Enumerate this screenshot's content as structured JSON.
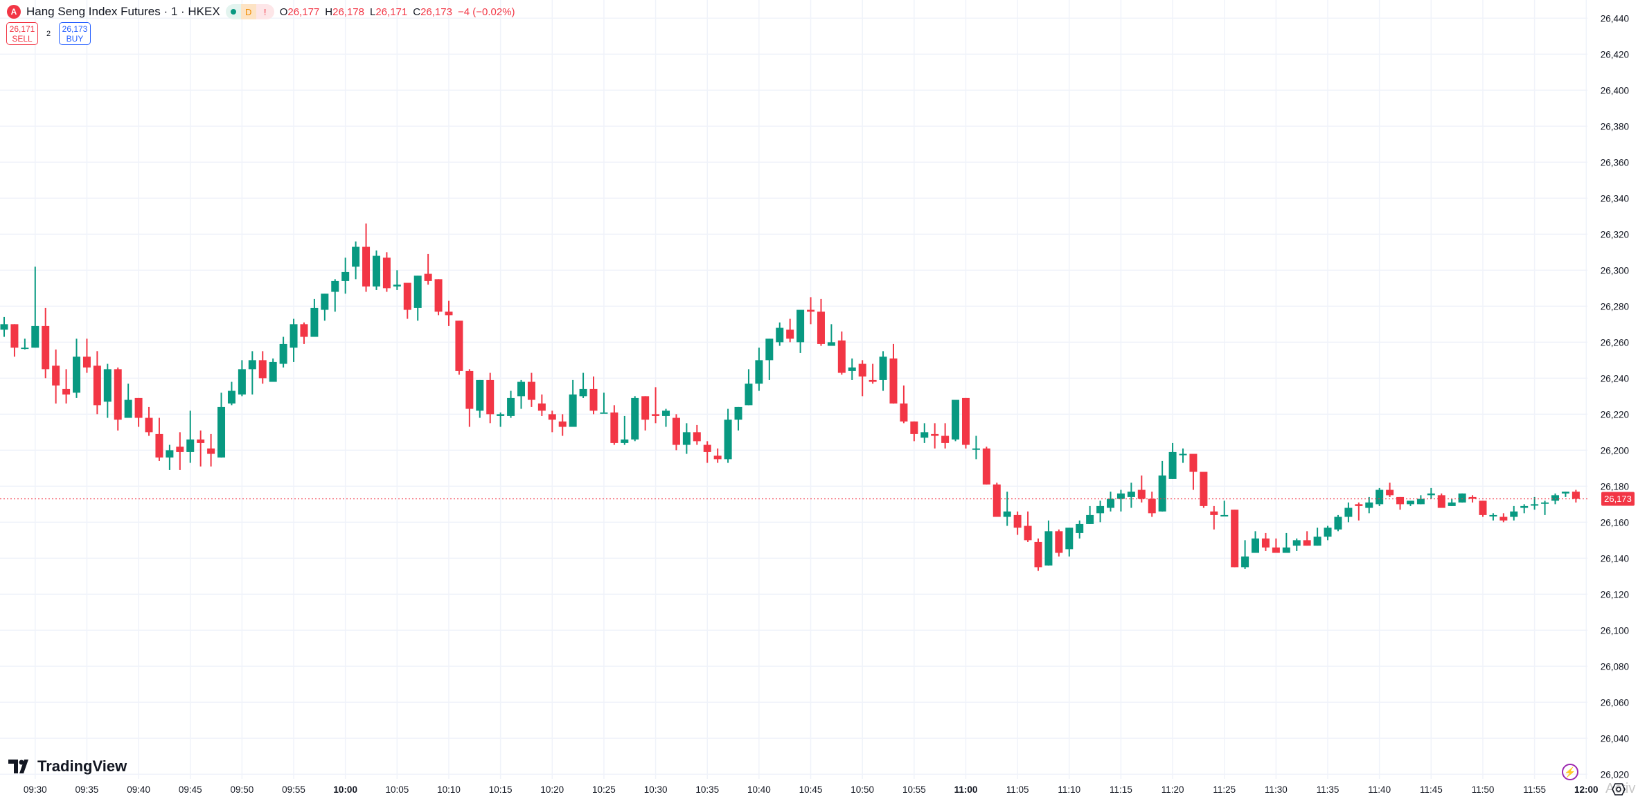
{
  "header": {
    "symbol_title": "Hang Seng Index Futures · 1 · HKEX",
    "logo_letter": "A",
    "badge_d": "D",
    "badge_warn": "!",
    "open_label": "O",
    "open": "26,177",
    "high_label": "H",
    "high": "26,178",
    "low_label": "L",
    "low": "26,171",
    "close_label": "C",
    "close": "26,173",
    "change": "−4 (−0.02%)"
  },
  "trade": {
    "sell_price": "26,171",
    "sell_label": "SELL",
    "spread": "2",
    "buy_price": "26,173",
    "buy_label": "BUY"
  },
  "branding": {
    "tradingview": "TradingView"
  },
  "watermark": "Activ",
  "colors": {
    "up": "#089981",
    "down": "#f23645",
    "grid": "#f0f3fa",
    "current_price": "#f23645"
  },
  "icons": {
    "symbol_logo": "hkex-logo-icon",
    "lightning": "lightning-icon",
    "settings": "settings-icon"
  },
  "chart_data": {
    "type": "candlestick",
    "interval": "1 minute",
    "current_price": 26173,
    "current_price_label": "26,173",
    "ylim": [
      26020,
      26440
    ],
    "y_ticks": [
      "26,020",
      "26,040",
      "26,060",
      "26,080",
      "26,100",
      "26,120",
      "26,140",
      "26,160",
      "26,180",
      "26,200",
      "26,220",
      "26,240",
      "26,260",
      "26,280",
      "26,300",
      "26,320",
      "26,340",
      "26,360",
      "26,380",
      "26,400",
      "26,420",
      "26,440"
    ],
    "x_ticks": [
      "09:30",
      "09:35",
      "09:40",
      "09:45",
      "09:50",
      "09:55",
      "10:00",
      "10:05",
      "10:10",
      "10:15",
      "10:20",
      "10:25",
      "10:30",
      "10:35",
      "10:40",
      "10:45",
      "10:50",
      "10:55",
      "11:00",
      "11:05",
      "11:10",
      "11:15",
      "11:20",
      "11:25",
      "11:30",
      "11:35",
      "11:40",
      "11:45",
      "11:50",
      "11:55",
      "12:00"
    ],
    "grid": true,
    "candle_fields": [
      "time",
      "open",
      "high",
      "low",
      "close"
    ],
    "candles": [
      [
        "09:27",
        26267,
        26274,
        26263,
        26270
      ],
      [
        "09:28",
        26270,
        26270,
        26252,
        26257
      ],
      [
        "09:29",
        26257,
        26262,
        26256,
        26257
      ],
      [
        "09:30",
        26257,
        26302,
        26257,
        26269
      ],
      [
        "09:31",
        26269,
        26279,
        26240,
        26245
      ],
      [
        "09:32",
        26247,
        26256,
        26226,
        26236
      ],
      [
        "09:33",
        26234,
        26245,
        26226,
        26231
      ],
      [
        "09:34",
        26232,
        26262,
        26229,
        26252
      ],
      [
        "09:35",
        26252,
        26262,
        26243,
        26246
      ],
      [
        "09:36",
        26247,
        26255,
        26220,
        26225
      ],
      [
        "09:37",
        26227,
        26248,
        26218,
        26245
      ],
      [
        "09:38",
        26245,
        26246,
        26211,
        26217
      ],
      [
        "09:39",
        26218,
        26237,
        26218,
        26228
      ],
      [
        "09:40",
        26229,
        26229,
        26213,
        26218
      ],
      [
        "09:41",
        26218,
        26224,
        26208,
        26210
      ],
      [
        "09:42",
        26209,
        26218,
        26194,
        26196
      ],
      [
        "09:43",
        26196,
        26203,
        26189,
        26200
      ],
      [
        "09:44",
        26202,
        26210,
        26189,
        26199
      ],
      [
        "09:45",
        26199,
        26222,
        26193,
        26206
      ],
      [
        "09:46",
        26206,
        26211,
        26191,
        26204
      ],
      [
        "09:47",
        26201,
        26209,
        26191,
        26198
      ],
      [
        "09:48",
        26196,
        26232,
        26196,
        26224
      ],
      [
        "09:49",
        26226,
        26238,
        26225,
        26233
      ],
      [
        "09:50",
        26231,
        26250,
        26230,
        26245
      ],
      [
        "09:51",
        26245,
        26255,
        26231,
        26250
      ],
      [
        "09:52",
        26250,
        26255,
        26237,
        26240
      ],
      [
        "09:53",
        26238,
        26251,
        26238,
        26249
      ],
      [
        "09:54",
        26248,
        26263,
        26246,
        26259
      ],
      [
        "09:55",
        26257,
        26273,
        26249,
        26270
      ],
      [
        "09:56",
        26270,
        26271,
        26259,
        26263
      ],
      [
        "09:57",
        26263,
        26284,
        26263,
        26279
      ],
      [
        "09:58",
        26278,
        26287,
        26272,
        26287
      ],
      [
        "09:59",
        26288,
        26295,
        26277,
        26294
      ],
      [
        "10:00",
        26294,
        26307,
        26287,
        26299
      ],
      [
        "10:01",
        26302,
        26316,
        26295,
        26313
      ],
      [
        "10:02",
        26313,
        26326,
        26288,
        26291
      ],
      [
        "10:03",
        26291,
        26311,
        26289,
        26308
      ],
      [
        "10:04",
        26307,
        26310,
        26288,
        26290
      ],
      [
        "10:05",
        26291,
        26300,
        26289,
        26292
      ],
      [
        "10:06",
        26293,
        26293,
        26273,
        26278
      ],
      [
        "10:07",
        26279,
        26297,
        26272,
        26297
      ],
      [
        "10:08",
        26298,
        26309,
        26292,
        26294
      ],
      [
        "10:09",
        26295,
        26295,
        26275,
        26277
      ],
      [
        "10:10",
        26277,
        26283,
        26269,
        26275
      ],
      [
        "10:11",
        26272,
        26272,
        26242,
        26244
      ],
      [
        "10:12",
        26244,
        26245,
        26213,
        26223
      ],
      [
        "10:13",
        26222,
        26239,
        26218,
        26239
      ],
      [
        "10:14",
        26239,
        26243,
        26215,
        26220
      ],
      [
        "10:15",
        26219,
        26221,
        26213,
        26220
      ],
      [
        "10:16",
        26219,
        26233,
        26218,
        26229
      ],
      [
        "10:17",
        26230,
        26239,
        26223,
        26238
      ],
      [
        "10:18",
        26238,
        26243,
        26224,
        26228
      ],
      [
        "10:19",
        26226,
        26231,
        26219,
        26222
      ],
      [
        "10:20",
        26220,
        26222,
        26210,
        26217
      ],
      [
        "10:21",
        26216,
        26220,
        26208,
        26213
      ],
      [
        "10:22",
        26213,
        26239,
        26213,
        26231
      ],
      [
        "10:23",
        26230,
        26243,
        26229,
        26234
      ],
      [
        "10:24",
        26234,
        26241,
        26220,
        26222
      ],
      [
        "10:25",
        26221,
        26232,
        26221,
        26221
      ],
      [
        "10:26",
        26221,
        26225,
        26203,
        26204
      ],
      [
        "10:27",
        26204,
        26219,
        26203,
        26206
      ],
      [
        "10:28",
        26206,
        26230,
        26205,
        26229
      ],
      [
        "10:29",
        26230,
        26230,
        26211,
        26217
      ],
      [
        "10:30",
        26220,
        26235,
        26215,
        26219
      ],
      [
        "10:31",
        26219,
        26223,
        26213,
        26222
      ],
      [
        "10:32",
        26218,
        26220,
        26200,
        26203
      ],
      [
        "10:33",
        26203,
        26215,
        26198,
        26210
      ],
      [
        "10:34",
        26210,
        26214,
        26203,
        26205
      ],
      [
        "10:35",
        26203,
        26205,
        26193,
        26199
      ],
      [
        "10:36",
        26197,
        26201,
        26193,
        26195
      ],
      [
        "10:37",
        26195,
        26223,
        26193,
        26217
      ],
      [
        "10:38",
        26217,
        26224,
        26211,
        26224
      ],
      [
        "10:39",
        26225,
        26245,
        26225,
        26237
      ],
      [
        "10:40",
        26237,
        26257,
        26233,
        26250
      ],
      [
        "10:41",
        26250,
        26262,
        26239,
        26262
      ],
      [
        "10:42",
        26260,
        26271,
        26258,
        26268
      ],
      [
        "10:43",
        26267,
        26273,
        26260,
        26262
      ],
      [
        "10:44",
        26260,
        26278,
        26254,
        26278
      ],
      [
        "10:45",
        26278,
        26285,
        26270,
        26277
      ],
      [
        "10:46",
        26277,
        26284,
        26258,
        26259
      ],
      [
        "10:47",
        26258,
        26270,
        26258,
        26260
      ],
      [
        "10:48",
        26261,
        26266,
        26242,
        26243
      ],
      [
        "10:49",
        26244,
        26251,
        26239,
        26246
      ],
      [
        "10:50",
        26248,
        26250,
        26230,
        26241
      ],
      [
        "10:51",
        26239,
        26248,
        26237,
        26238
      ],
      [
        "10:52",
        26239,
        26255,
        26233,
        26252
      ],
      [
        "10:53",
        26251,
        26259,
        26226,
        26226
      ],
      [
        "10:54",
        26226,
        26236,
        26215,
        26216
      ],
      [
        "10:55",
        26216,
        26216,
        26205,
        26209
      ],
      [
        "10:56",
        26207,
        26215,
        26204,
        26210
      ],
      [
        "10:57",
        26209,
        26215,
        26201,
        26208
      ],
      [
        "10:58",
        26208,
        26215,
        26201,
        26204
      ],
      [
        "10:59",
        26206,
        26228,
        26205,
        26228
      ],
      [
        "11:00",
        26229,
        26229,
        26201,
        26203
      ],
      [
        "11:01",
        26201,
        26208,
        26195,
        26201
      ],
      [
        "11:02",
        26201,
        26202,
        26181,
        26181
      ],
      [
        "11:03",
        26181,
        26182,
        26163,
        26163
      ],
      [
        "11:04",
        26163,
        26177,
        26158,
        26166
      ],
      [
        "11:05",
        26164,
        26166,
        26153,
        26157
      ],
      [
        "11:06",
        26158,
        26166,
        26149,
        26150
      ],
      [
        "11:07",
        26149,
        26151,
        26133,
        26135
      ],
      [
        "11:08",
        26136,
        26161,
        26136,
        26155
      ],
      [
        "11:09",
        26155,
        26156,
        26141,
        26143
      ],
      [
        "11:10",
        26145,
        26157,
        26141,
        26157
      ],
      [
        "11:11",
        26154,
        26161,
        26151,
        26159
      ],
      [
        "11:12",
        26159,
        26169,
        26159,
        26164
      ],
      [
        "11:13",
        26165,
        26172,
        26160,
        26169
      ],
      [
        "11:14",
        26168,
        26177,
        26166,
        26173
      ],
      [
        "11:15",
        26173,
        26178,
        26166,
        26176
      ],
      [
        "11:16",
        26174,
        26182,
        26168,
        26177
      ],
      [
        "11:17",
        26178,
        26186,
        26171,
        26173
      ],
      [
        "11:18",
        26173,
        26177,
        26163,
        26165
      ],
      [
        "11:19",
        26166,
        26194,
        26166,
        26186
      ],
      [
        "11:20",
        26184,
        26204,
        26184,
        26199
      ],
      [
        "11:21",
        26198,
        26201,
        26193,
        26198
      ],
      [
        "11:22",
        26198,
        26198,
        26178,
        26188
      ],
      [
        "11:23",
        26188,
        26188,
        26168,
        26169
      ],
      [
        "11:24",
        26166,
        26169,
        26156,
        26164
      ],
      [
        "11:25",
        26164,
        26172,
        26164,
        26164
      ],
      [
        "11:26",
        26167,
        26167,
        26135,
        26135
      ],
      [
        "11:27",
        26135,
        26150,
        26134,
        26141
      ],
      [
        "11:28",
        26143,
        26155,
        26143,
        26151
      ],
      [
        "11:29",
        26151,
        26154,
        26144,
        26146
      ],
      [
        "11:30",
        26146,
        26151,
        26143,
        26143
      ],
      [
        "11:31",
        26143,
        26154,
        26143,
        26146
      ],
      [
        "11:32",
        26147,
        26151,
        26144,
        26150
      ],
      [
        "11:33",
        26150,
        26155,
        26147,
        26147
      ],
      [
        "11:34",
        26147,
        26157,
        26147,
        26152
      ],
      [
        "11:35",
        26152,
        26158,
        26150,
        26157
      ],
      [
        "11:36",
        26156,
        26164,
        26155,
        26163
      ],
      [
        "11:37",
        26163,
        26171,
        26160,
        26168
      ],
      [
        "11:38",
        26170,
        26171,
        26161,
        26169
      ],
      [
        "11:39",
        26168,
        26174,
        26165,
        26171
      ],
      [
        "11:40",
        26170,
        26179,
        26169,
        26178
      ],
      [
        "11:41",
        26178,
        26182,
        26174,
        26175
      ],
      [
        "11:42",
        26174,
        26174,
        26167,
        26170
      ],
      [
        "11:43",
        26170,
        26172,
        26169,
        26172
      ],
      [
        "11:44",
        26170,
        26175,
        26170,
        26173
      ],
      [
        "11:45",
        26175,
        26179,
        26173,
        26176
      ],
      [
        "11:46",
        26175,
        26176,
        26168,
        26168
      ],
      [
        "11:47",
        26169,
        26173,
        26169,
        26171
      ],
      [
        "11:48",
        26171,
        26176,
        26171,
        26176
      ],
      [
        "11:49",
        26174,
        26175,
        26171,
        26173
      ],
      [
        "11:50",
        26172,
        26172,
        26163,
        26164
      ],
      [
        "11:51",
        26164,
        26165,
        26161,
        26164
      ],
      [
        "11:52",
        26163,
        26165,
        26160,
        26161
      ],
      [
        "11:53",
        26163,
        26169,
        26161,
        26166
      ],
      [
        "11:54",
        26168,
        26170,
        26165,
        26169
      ],
      [
        "11:55",
        26170,
        26174,
        26167,
        26170
      ],
      [
        "11:56",
        26171,
        26172,
        26164,
        26171
      ],
      [
        "11:57",
        26172,
        26176,
        26170,
        26175
      ],
      [
        "11:58",
        26176,
        26177,
        26174,
        26177
      ],
      [
        "11:59",
        26177,
        26178,
        26171,
        26173
      ]
    ]
  }
}
